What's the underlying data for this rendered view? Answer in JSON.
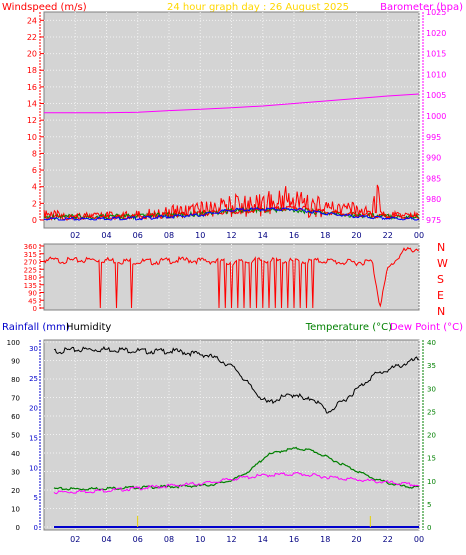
{
  "colors": {
    "wind": "#ff0000",
    "gust": "#ff0000",
    "wind_avg": "#0000ff",
    "wind_green": "#008800",
    "barometer": "#ff00ff",
    "title": "#ffd700",
    "rain": "#0000cc",
    "humidity": "#000000",
    "temperature": "#008000",
    "dewpoint": "#ff00ff",
    "panel_bg": "#d4d4d4",
    "grid": "#f2f2f2"
  },
  "chart_data": [
    {
      "type": "line",
      "title": "24 hour graph day : 26 August 2025",
      "left_label": "Windspeed (m/s)",
      "right_label": "Barometer (hpa)",
      "x_ticks": [
        "02",
        "04",
        "06",
        "08",
        "10",
        "12",
        "14",
        "16",
        "18",
        "20",
        "22",
        "00"
      ],
      "y_left_ticks": [
        0,
        2,
        4,
        6,
        8,
        10,
        12,
        14,
        16,
        18,
        20,
        22,
        24
      ],
      "y_left_lim": [
        0,
        25
      ],
      "y_right_ticks": [
        975,
        980,
        985,
        990,
        995,
        1000,
        1005,
        1010,
        1015,
        1020,
        1025
      ],
      "y_right_lim": [
        975,
        1025
      ],
      "grid": true,
      "series": [
        {
          "name": "gust",
          "axis": "left",
          "x": [
            0,
            1,
            2,
            3,
            4,
            5,
            6,
            7,
            8,
            9,
            10,
            11,
            12,
            13,
            14,
            15,
            15.5,
            16,
            17,
            18,
            19,
            20,
            21,
            21.3,
            21.6,
            22,
            23,
            24
          ],
          "y": [
            1.2,
            1.1,
            1,
            0.9,
            1,
            1,
            1.2,
            1.5,
            1.7,
            2,
            2.2,
            2.5,
            3,
            3.2,
            3.5,
            3.5,
            5.5,
            4,
            3,
            2.8,
            2.5,
            2,
            1.5,
            5.5,
            1.5,
            1,
            1,
            1
          ]
        },
        {
          "name": "wind",
          "axis": "left",
          "x": [
            0,
            2,
            4,
            6,
            8,
            10,
            12,
            14,
            16,
            18,
            20,
            22,
            24
          ],
          "y": [
            0.3,
            0.3,
            0.4,
            0.4,
            0.6,
            0.8,
            1,
            1.2,
            1.5,
            1,
            0.6,
            0.4,
            0.3
          ]
        },
        {
          "name": "wind_avg",
          "axis": "left",
          "x": [
            0,
            2,
            4,
            6,
            8,
            10,
            12,
            14,
            16,
            18,
            20,
            22,
            24
          ],
          "y": [
            0.1,
            0.1,
            0.2,
            0.2,
            0.4,
            0.6,
            1.2,
            1.3,
            1.3,
            0.8,
            0.4,
            0.2,
            0.1
          ]
        },
        {
          "name": "barometer",
          "axis": "right",
          "x": [
            0,
            2,
            4,
            6,
            8,
            10,
            12,
            14,
            16,
            18,
            20,
            22,
            24
          ],
          "y": [
            1000.8,
            1000.8,
            1000.8,
            1000.9,
            1001.3,
            1001.6,
            1002.0,
            1002.4,
            1003.0,
            1003.6,
            1004.2,
            1004.8,
            1005.3
          ]
        }
      ]
    },
    {
      "type": "scatter",
      "right_labels": [
        "N",
        "W",
        "S",
        "E",
        "N"
      ],
      "y_left_ticks": [
        0,
        45,
        90,
        135,
        180,
        225,
        270,
        315,
        360
      ],
      "y_lim": [
        0,
        360
      ],
      "series": [
        {
          "name": "wind direction",
          "x": [
            0,
            1,
            2,
            3,
            4,
            5,
            6,
            7,
            8,
            9,
            10,
            11,
            12,
            13,
            14,
            15,
            16,
            17,
            18,
            19,
            20,
            21,
            21.5,
            22,
            23,
            24
          ],
          "y": [
            280,
            275,
            275,
            280,
            278,
            272,
            270,
            268,
            275,
            278,
            275,
            270,
            265,
            270,
            278,
            272,
            270,
            270,
            275,
            265,
            265,
            270,
            15,
            225,
            330,
            345
          ]
        }
      ]
    },
    {
      "type": "line",
      "left_label": "Rainfall (mm)",
      "left_label2": "Humidity",
      "right_label": "Temperature (°C)",
      "right_label2": "Dew Point (°C)",
      "x_ticks": [
        "02",
        "04",
        "06",
        "08",
        "10",
        "12",
        "14",
        "16",
        "18",
        "20",
        "22",
        "00"
      ],
      "y_humidity_ticks": [
        0,
        10,
        20,
        30,
        40,
        50,
        60,
        70,
        80,
        90,
        100
      ],
      "y_rain_ticks": [
        0,
        5,
        10,
        15,
        20,
        25,
        30
      ],
      "y_temp_ticks": [
        0,
        5,
        10,
        15,
        20,
        25,
        30,
        35,
        40
      ],
      "y_humidity_lim": [
        0,
        100
      ],
      "y_temp_lim": [
        0,
        40
      ],
      "grid": true,
      "series": [
        {
          "name": "humidity",
          "axis": "humidity",
          "x": [
            0,
            2,
            4,
            6,
            8,
            10,
            11,
            12,
            13,
            14,
            15,
            16,
            16.5,
            17,
            18,
            19,
            20,
            21,
            22,
            23,
            24
          ],
          "y": [
            95,
            96,
            96,
            95,
            95,
            93,
            90,
            85,
            75,
            67,
            70,
            72,
            68,
            70,
            62,
            68,
            75,
            82,
            85,
            88,
            91
          ]
        },
        {
          "name": "temperature",
          "axis": "temp",
          "x": [
            0,
            2,
            4,
            6,
            8,
            10,
            11,
            12,
            13,
            14,
            15,
            16,
            17,
            18,
            19,
            20,
            21,
            22,
            23,
            24
          ],
          "y": [
            16.5,
            16.5,
            16.8,
            17.2,
            17.5,
            18,
            19,
            21,
            25,
            31,
            33,
            34,
            33,
            30,
            27,
            24,
            21,
            19,
            17.5,
            17
          ]
        },
        {
          "name": "dewpoint",
          "axis": "temp",
          "x": [
            0,
            2,
            4,
            6,
            8,
            10,
            12,
            14,
            16,
            18,
            20,
            22,
            24
          ],
          "y": [
            7.5,
            7.7,
            8,
            8.5,
            9,
            9.5,
            10.5,
            11.2,
            11.5,
            10.8,
            10.2,
            9.6,
            9
          ]
        },
        {
          "name": "rainfall",
          "axis": "rain",
          "x": [
            0,
            24
          ],
          "y": [
            0,
            0
          ]
        }
      ]
    }
  ]
}
